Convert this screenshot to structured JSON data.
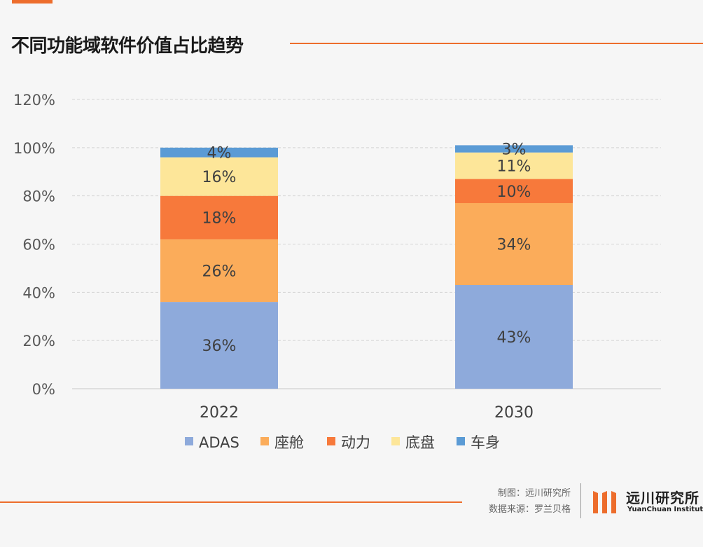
{
  "page": {
    "title": "不同功能域软件价值占比趋势",
    "credit_chart": "制图：远川研究所",
    "credit_source": "数据来源：罗兰贝格",
    "logo_cn": "远川研究所",
    "logo_en": "YuanChuan Institution",
    "logo_icon": "orange-bars-icon",
    "accent_color": "#ed6d2c"
  },
  "chart_data": {
    "type": "bar",
    "stacked": true,
    "categories": [
      "2022",
      "2030"
    ],
    "series": [
      {
        "name": "ADAS",
        "values": [
          36,
          43
        ],
        "labels": [
          "36%",
          "43%"
        ],
        "color": "#8eaadb"
      },
      {
        "name": "座舱",
        "values": [
          26,
          34
        ],
        "labels": [
          "26%",
          "34%"
        ],
        "color": "#fbac5a"
      },
      {
        "name": "动力",
        "values": [
          18,
          10
        ],
        "labels": [
          "18%",
          "10%"
        ],
        "color": "#f7793b"
      },
      {
        "name": "底盘",
        "values": [
          16,
          11
        ],
        "labels": [
          "16%",
          "11%"
        ],
        "color": "#fde699"
      },
      {
        "name": "车身",
        "values": [
          4,
          3
        ],
        "labels": [
          "4%",
          "3%"
        ],
        "color": "#5b9bd5"
      }
    ],
    "y_ticks": [
      "0%",
      "20%",
      "40%",
      "60%",
      "80%",
      "100%",
      "120%"
    ],
    "ylim": [
      0,
      120
    ],
    "grid": true,
    "legend": "bottom",
    "title": "",
    "xlabel": "",
    "ylabel": ""
  }
}
